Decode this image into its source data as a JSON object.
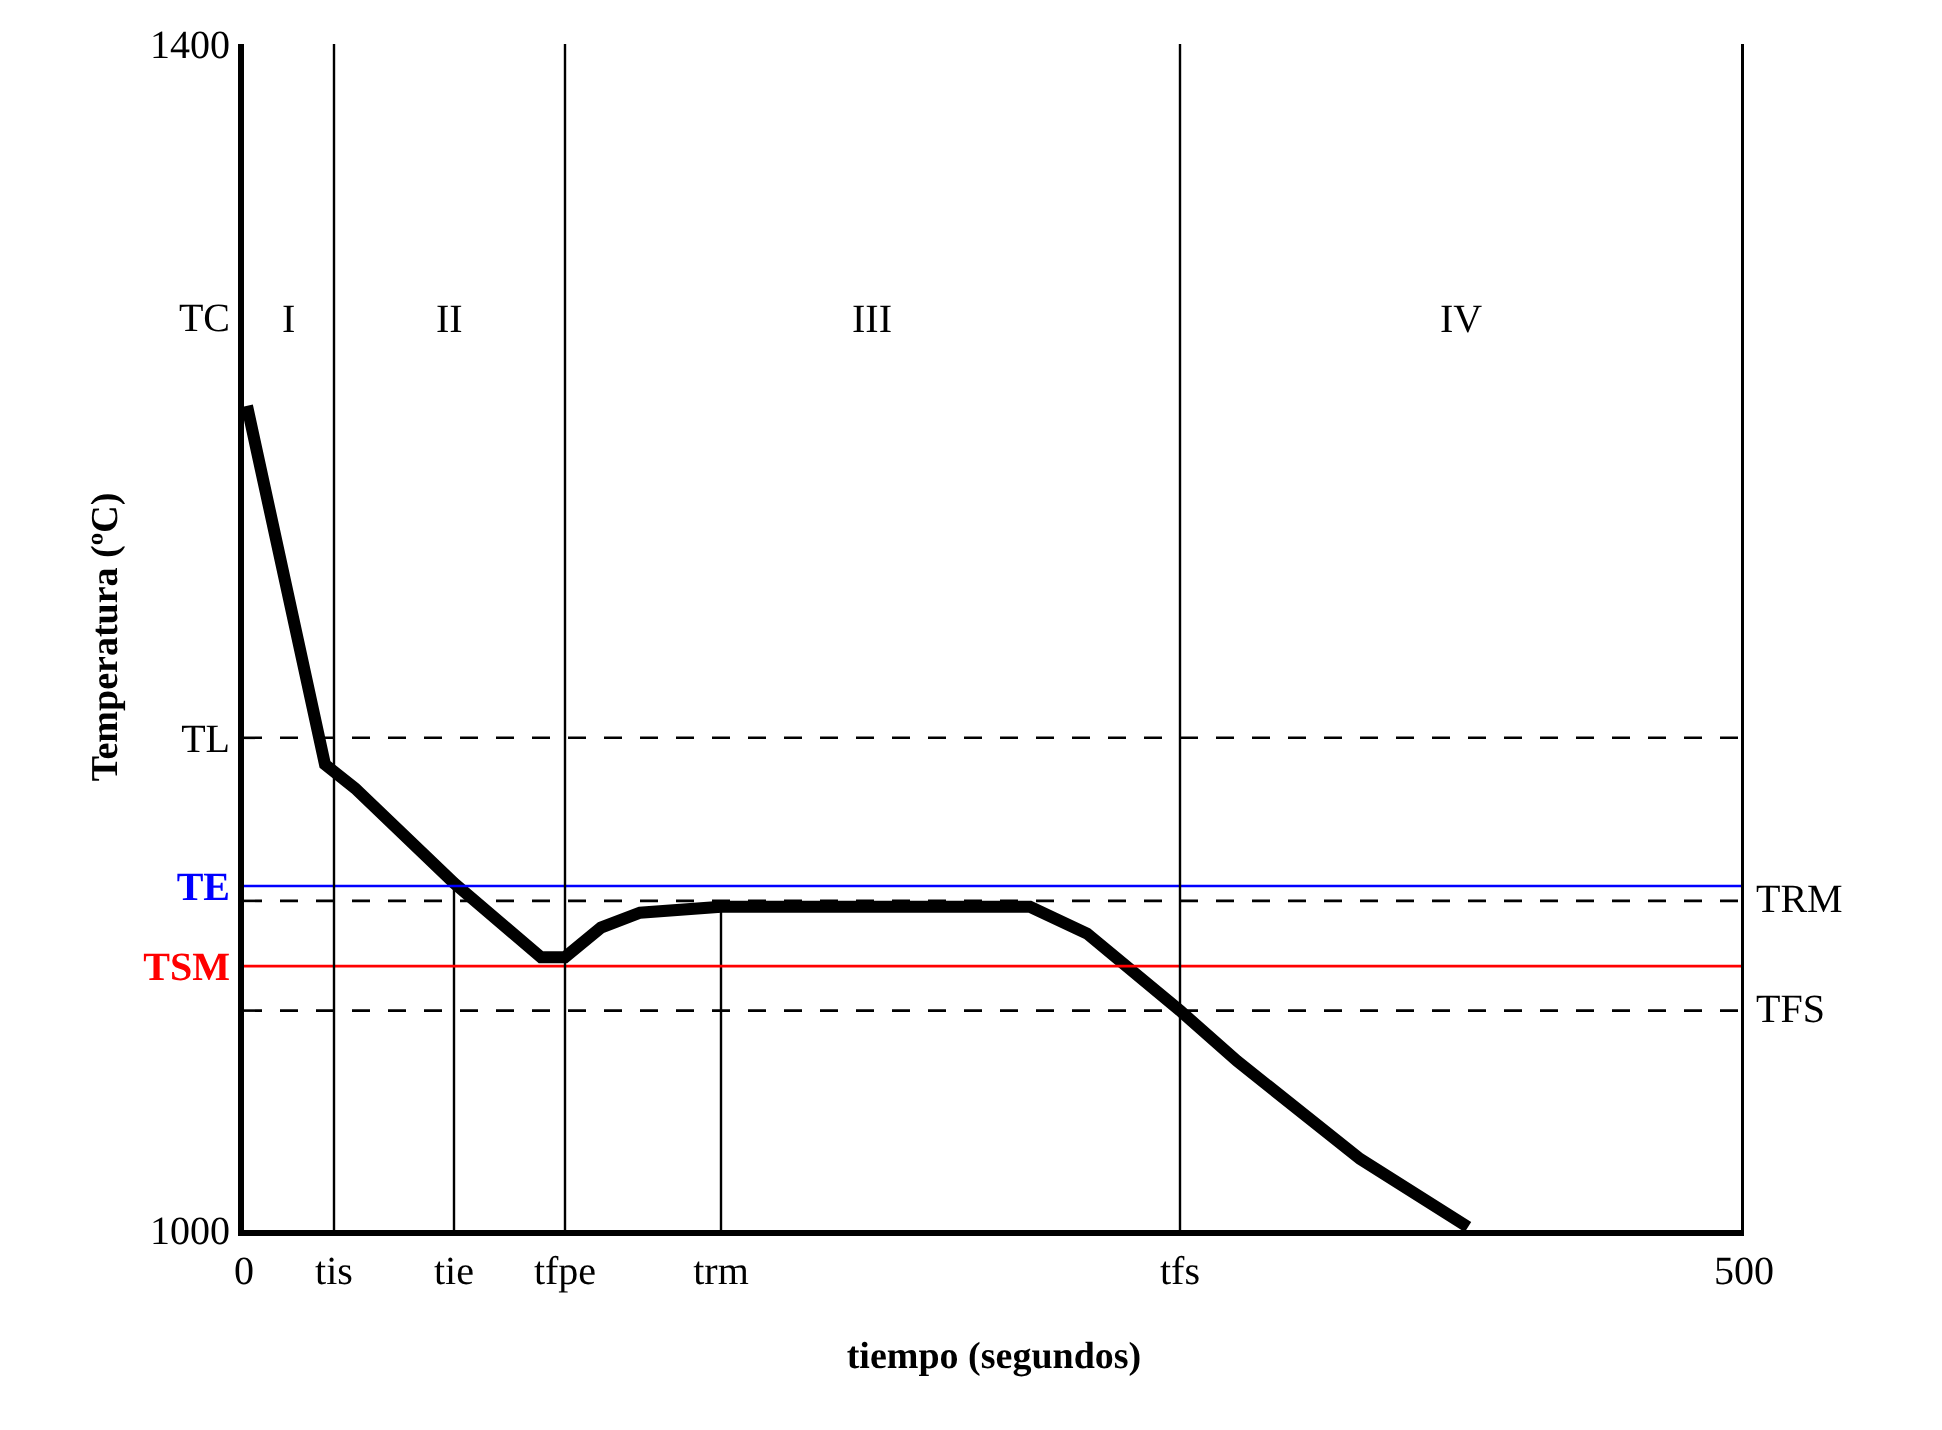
{
  "chart_data": {
    "type": "line",
    "xlabel": "tiempo (segundos)",
    "ylabel": "Temperatura (ºC)",
    "xlim": [
      0,
      500
    ],
    "ylim": [
      1000,
      1400
    ],
    "xticks": [
      0,
      {
        "value": 30,
        "label": "tis"
      },
      {
        "value": 70,
        "label": "tie"
      },
      {
        "value": 107,
        "label": "tfpe"
      },
      {
        "value": 159,
        "label": "trm"
      },
      {
        "value": 312,
        "label": "tfs"
      },
      500
    ],
    "yticks": [
      1000,
      {
        "value": 1166,
        "label": "TL"
      },
      {
        "value": 1116,
        "label": "TE"
      },
      {
        "value": 1089,
        "label": "TSM"
      },
      {
        "value": 1308,
        "label": "TC"
      },
      1400
    ],
    "series": [
      {
        "color": "#000000",
        "x": [
          1,
          27,
          37,
          70,
          99,
          107,
          119,
          132,
          159,
          262,
          281,
          312,
          331,
          372,
          408
        ],
        "values": [
          1278,
          1157,
          1149,
          1117,
          1092,
          1092,
          1102,
          1107,
          1109,
          1109,
          1100,
          1074,
          1057,
          1024,
          1001
        ]
      },
      {
        "color": "#000000",
        "x": [
          70,
          70
        ],
        "values": [
          1000,
          1117
        ],
        "line_style": "solid"
      },
      {
        "color": "#000000",
        "x": [
          159,
          159
        ],
        "values": [
          1000,
          1109
        ],
        "line_style": "solid"
      }
    ],
    "ref_lines": [
      {
        "axis": "y",
        "value": 1166,
        "color": "#000000",
        "line_style": "dashed"
      },
      {
        "axis": "y",
        "value": 1116,
        "color": "#0000ff",
        "line_style": "solid"
      },
      {
        "axis": "y",
        "value": 1111,
        "color": "#000000",
        "line_style": "dashed",
        "label": "TRM"
      },
      {
        "axis": "y",
        "value": 1089,
        "color": "#ff0000",
        "line_style": "solid"
      },
      {
        "axis": "y",
        "value": 1074,
        "color": "#000000",
        "line_style": "dashed",
        "label": "TFS"
      },
      {
        "axis": "x",
        "value": 30,
        "color": "#000000",
        "line_style": "solid"
      },
      {
        "axis": "x",
        "value": 107,
        "color": "#000000",
        "line_style": "solid"
      },
      {
        "axis": "x",
        "value": 312,
        "color": "#000000",
        "line_style": "solid"
      },
      {
        "axis": "x",
        "value": 500,
        "color": "#000000",
        "line_style": "solid"
      }
    ],
    "annotations": [
      "I",
      "II",
      "III",
      "IV"
    ]
  }
}
